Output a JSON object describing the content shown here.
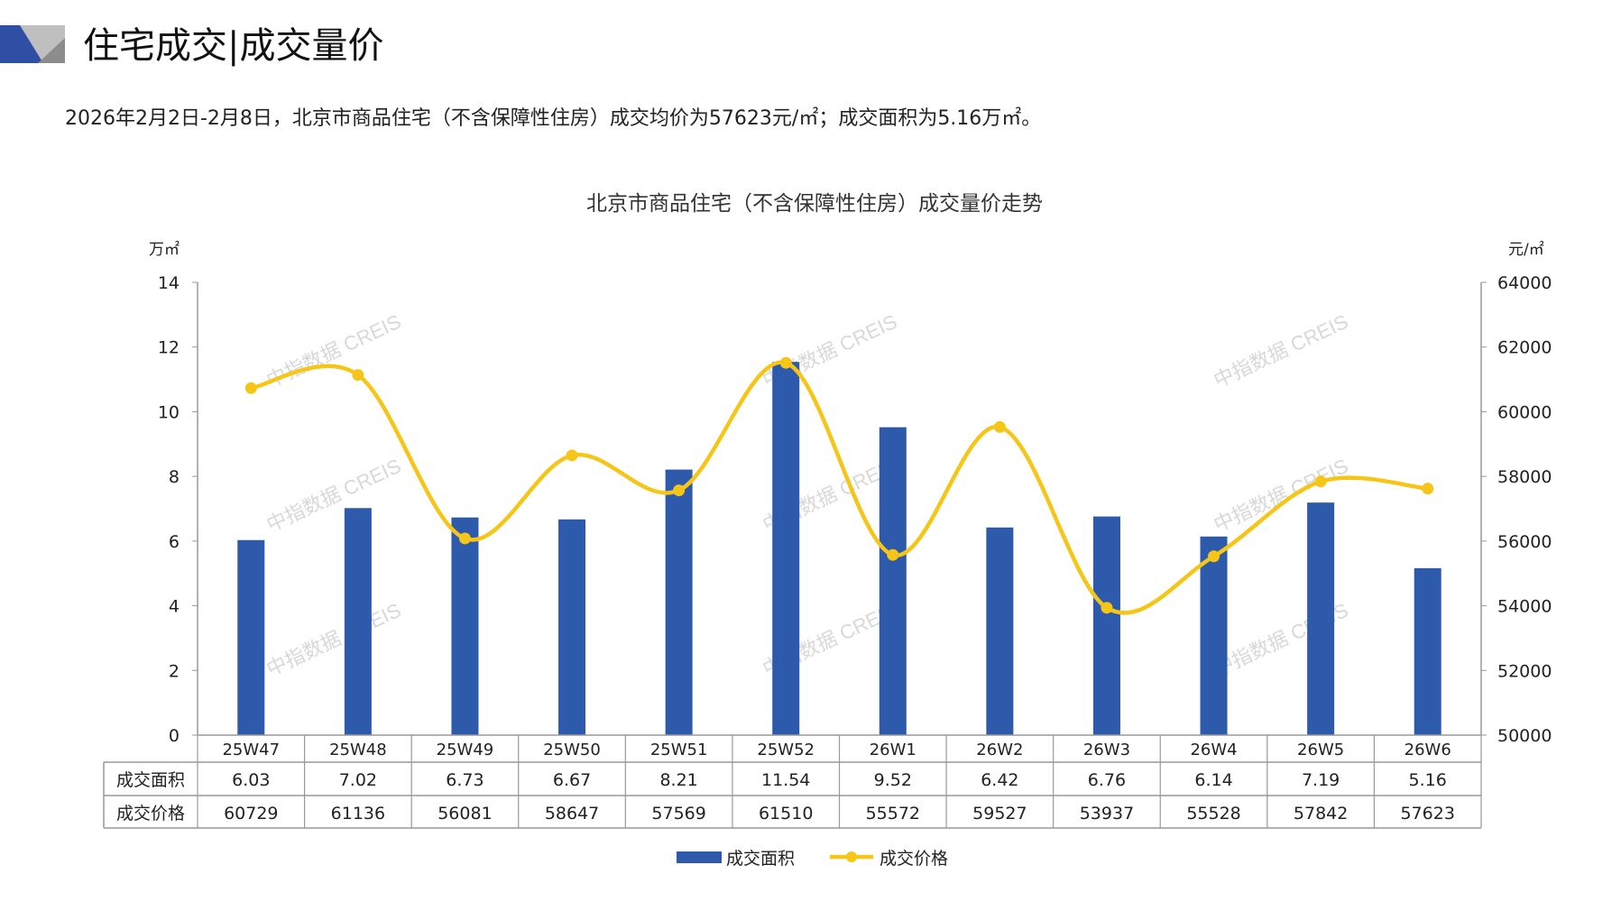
{
  "header": {
    "title": "住宅成交|成交量价",
    "summary": "2026年2月2日-2月8日，北京市商品住宅（不含保障性住房）成交均价为57623元/㎡；成交面积为5.16万㎡。"
  },
  "watermark": "中指数据 CREIS",
  "colors": {
    "bar": "#2E5AAC",
    "line": "#F5C518",
    "accent": "#2E4FA3"
  },
  "chart_data": {
    "type": "bar+line",
    "title": "北京市商品住宅（不含保障性住房）成交量价走势",
    "categories": [
      "25W47",
      "25W48",
      "25W49",
      "25W50",
      "25W51",
      "25W52",
      "26W1",
      "26W2",
      "26W3",
      "26W4",
      "26W5",
      "26W6"
    ],
    "series": [
      {
        "name": "成交面积",
        "type": "bar",
        "axis": "left",
        "values": [
          6.03,
          7.02,
          6.73,
          6.67,
          8.21,
          11.54,
          9.52,
          6.42,
          6.76,
          6.14,
          7.19,
          5.16
        ]
      },
      {
        "name": "成交价格",
        "type": "line",
        "axis": "right",
        "values": [
          60729,
          61136,
          56081,
          58647,
          57569,
          61510,
          55572,
          59527,
          53937,
          55528,
          57842,
          57623
        ]
      }
    ],
    "ylabel_left": "万㎡",
    "ylabel_right": "元/㎡",
    "ylim_left": [
      0,
      14
    ],
    "yticks_left": [
      0,
      2,
      4,
      6,
      8,
      10,
      12,
      14
    ],
    "ylim_right": [
      50000,
      64000
    ],
    "yticks_right": [
      50000,
      52000,
      54000,
      56000,
      58000,
      60000,
      62000,
      64000
    ],
    "legend": "bottom",
    "grid": false,
    "data_table": true
  }
}
